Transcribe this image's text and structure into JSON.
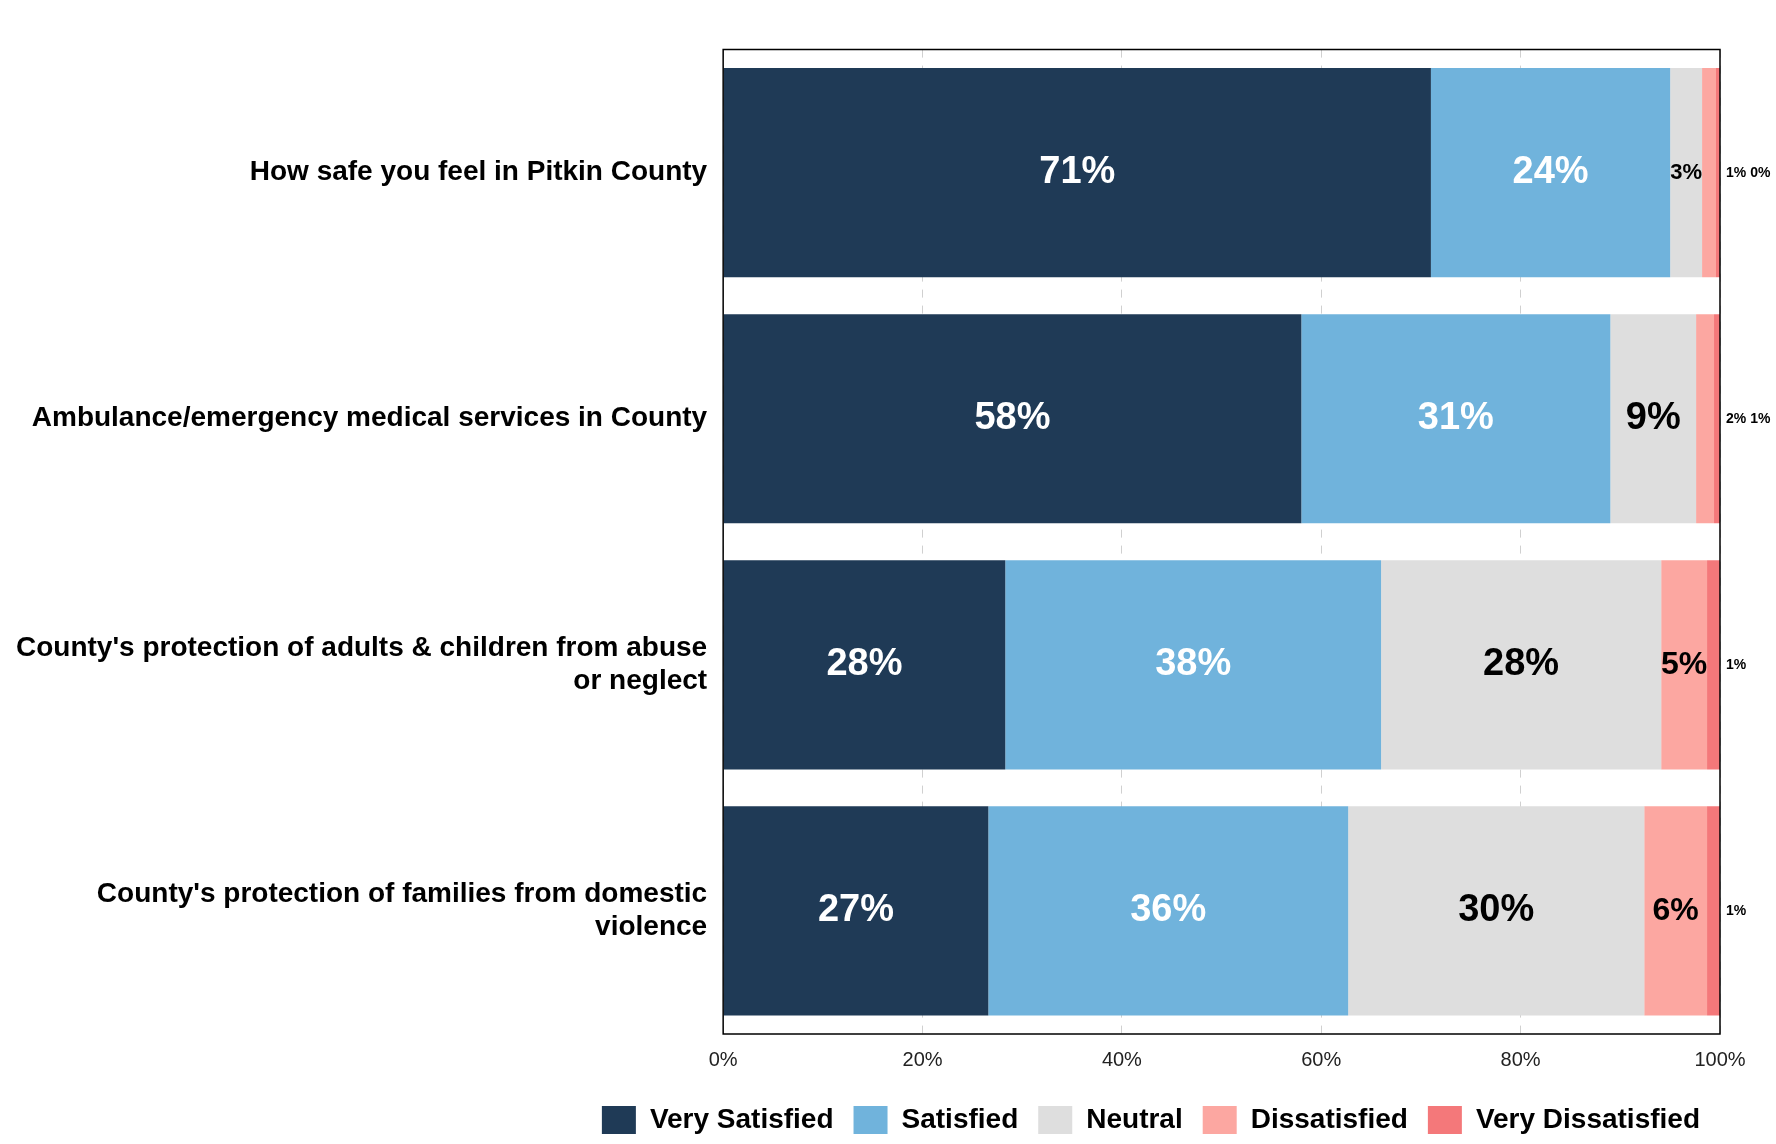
{
  "chart_data": {
    "type": "bar",
    "orientation": "horizontal",
    "stacked": true,
    "categories": [
      "How safe you feel in Pitkin County",
      "Ambulance/emergency medical services in County",
      "County's protection of adults & children from abuse or neglect",
      "County's protection of families from domestic violence"
    ],
    "series": [
      {
        "name": "Very Satisfied",
        "color": "#1f3a56",
        "values": [
          71,
          58,
          28.3,
          26.6
        ],
        "value_labels": [
          "71%",
          "58%",
          "28%",
          "27%"
        ]
      },
      {
        "name": "Satisfied",
        "color": "#70b3dc",
        "values": [
          24,
          31,
          37.7,
          36.1
        ],
        "value_labels": [
          "24%",
          "31%",
          "38%",
          "36%"
        ]
      },
      {
        "name": "Neutral",
        "color": "#dedede",
        "values": [
          3.2,
          8.6,
          28.1,
          29.7
        ],
        "value_labels": [
          "3%",
          "9%",
          "28%",
          "30%"
        ]
      },
      {
        "name": "Dissatisfied",
        "color": "#fca7a1",
        "values": [
          1.4,
          1.8,
          4.6,
          6.3
        ],
        "value_labels": [
          "1%",
          "2%",
          "5%",
          "6%"
        ]
      },
      {
        "name": "Very Dissatisfied",
        "color": "#f4787a",
        "values": [
          0.4,
          0.6,
          1.3,
          1.3
        ],
        "value_labels": [
          "0%",
          "1%",
          "1%",
          "1%"
        ]
      }
    ],
    "xlim": [
      0,
      100
    ],
    "xticks": [
      {
        "value": 0,
        "label": "0%"
      },
      {
        "value": 20,
        "label": "20%"
      },
      {
        "value": 40,
        "label": "40%"
      },
      {
        "value": 60,
        "label": "60%"
      },
      {
        "value": 80,
        "label": "80%"
      },
      {
        "value": 100,
        "label": "100%"
      }
    ],
    "grid": "x",
    "legend": "bottom"
  }
}
